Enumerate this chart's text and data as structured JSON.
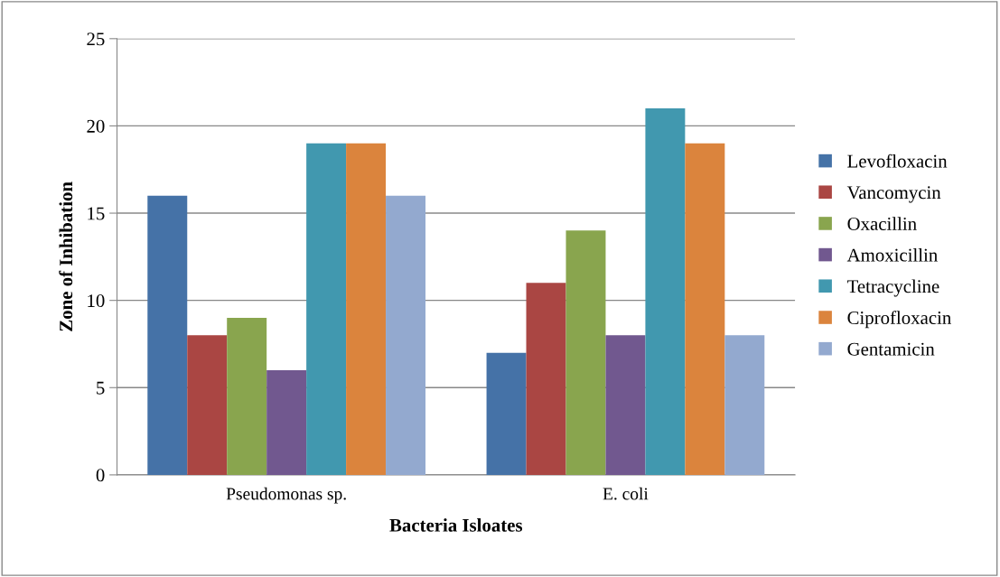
{
  "chart_data": {
    "type": "bar",
    "xlabel": "Bacteria Isloates",
    "ylabel": "Zone of Inhibation",
    "categories": [
      "Pseudomonas sp.",
      "E. coli"
    ],
    "series": [
      {
        "name": "Levofloxacin",
        "color": "#4572a7",
        "values": [
          16,
          7
        ]
      },
      {
        "name": "Vancomycin",
        "color": "#aa4643",
        "values": [
          8,
          11
        ]
      },
      {
        "name": "Oxacillin",
        "color": "#89a54e",
        "values": [
          9,
          14
        ]
      },
      {
        "name": "Amoxicillin",
        "color": "#71588f",
        "values": [
          6,
          8
        ]
      },
      {
        "name": "Tetracycline",
        "color": "#4198af",
        "values": [
          19,
          21
        ]
      },
      {
        "name": "Ciprofloxacin",
        "color": "#db843d",
        "values": [
          19,
          19
        ]
      },
      {
        "name": "Gentamicin",
        "color": "#93a9cf",
        "values": [
          16,
          8
        ]
      }
    ],
    "ylim": [
      0,
      25
    ],
    "yticks": [
      0,
      5,
      10,
      15,
      20,
      25
    ],
    "grid": "y",
    "legend": "right"
  }
}
